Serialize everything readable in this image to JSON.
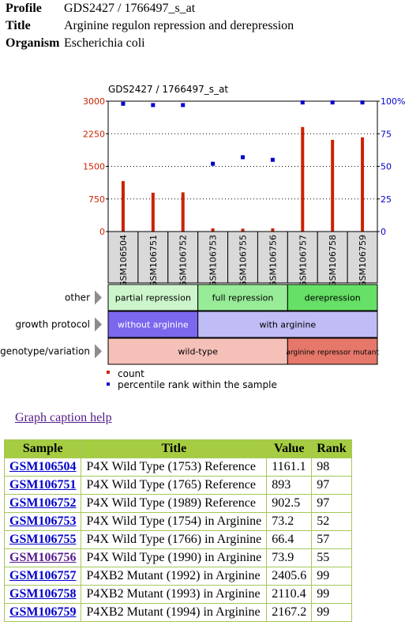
{
  "meta": {
    "profile_label": "Profile",
    "profile": "GDS2427 / 1766497_s_at",
    "title_label": "Title",
    "title": "Arginine regulon repression and derepression",
    "organism_label": "Organism",
    "organism": "Escherichia coli"
  },
  "chart_data": {
    "type": "bar",
    "title": "GDS2427 / 1766497_s_at",
    "categories": [
      "GSM106504",
      "GSM106751",
      "GSM106752",
      "GSM106753",
      "GSM106755",
      "GSM106756",
      "GSM106757",
      "GSM106758",
      "GSM106759"
    ],
    "series": [
      {
        "name": "count",
        "axis": "left",
        "color": "#cc2200",
        "values": [
          1161.1,
          893,
          902.5,
          73.2,
          66.4,
          73.9,
          2405.6,
          2110.4,
          2167.2
        ]
      },
      {
        "name": "percentile rank within the sample",
        "axis": "right",
        "color": "#0000cc",
        "values": [
          98,
          97,
          97,
          52,
          57,
          55,
          99,
          99,
          99
        ]
      }
    ],
    "left_axis": {
      "ticks": [
        "3000",
        "2250",
        "1500",
        "750",
        "0"
      ],
      "range": [
        0,
        3000
      ],
      "color": "#cc2200"
    },
    "right_axis": {
      "ticks": [
        "100%",
        "75",
        "50",
        "25",
        "0"
      ],
      "range": [
        0,
        100
      ],
      "color": "#0000cc"
    },
    "grid": true,
    "subsets": [
      {
        "label": "other",
        "groups": [
          {
            "text": "partial repression",
            "span": 3,
            "color": "#ccf5cc"
          },
          {
            "text": "full repression",
            "span": 3,
            "color": "#98ec98"
          },
          {
            "text": "derepression",
            "span": 3,
            "color": "#66e066"
          }
        ]
      },
      {
        "label": "growth protocol",
        "groups": [
          {
            "text": "without arginine",
            "span": 3,
            "color": "#7b68ee",
            "dark": true
          },
          {
            "text": "with arginine",
            "span": 6,
            "color": "#c0bcf5"
          }
        ]
      },
      {
        "label": "genotype/variation",
        "groups": [
          {
            "text": "wild-type",
            "span": 6,
            "color": "#f5c0b8"
          },
          {
            "text": "arginine repressor mutant",
            "span": 3,
            "color": "#e5786a",
            "small": true
          }
        ]
      }
    ],
    "legend": {
      "placement": "bottom-left",
      "items": [
        "count",
        "percentile rank within the sample"
      ]
    }
  },
  "help_link": "Graph caption help",
  "table": {
    "headers": [
      "Sample",
      "Title",
      "Value",
      "Rank"
    ],
    "rows": [
      {
        "sample": "GSM106504",
        "title": "P4X Wild Type (1753) Reference",
        "value": "1161.1",
        "rank": "98"
      },
      {
        "sample": "GSM106751",
        "title": "P4X Wild Type (1765) Reference",
        "value": "893",
        "rank": "97"
      },
      {
        "sample": "GSM106752",
        "title": "P4X Wild Type (1989) Reference",
        "value": "902.5",
        "rank": "97"
      },
      {
        "sample": "GSM106753",
        "title": "P4X Wild Type (1754) in Arginine",
        "value": "73.2",
        "rank": "52"
      },
      {
        "sample": "GSM106755",
        "title": "P4X Wild Type (1766) in Arginine",
        "value": "66.4",
        "rank": "57"
      },
      {
        "sample": "GSM106756",
        "title": "P4X Wild Type (1990) in Arginine",
        "value": "73.9",
        "rank": "55",
        "visited": true
      },
      {
        "sample": "GSM106757",
        "title": "P4XB2 Mutant (1992) in Arginine",
        "value": "2405.6",
        "rank": "99"
      },
      {
        "sample": "GSM106758",
        "title": "P4XB2 Mutant (1993) in Arginine",
        "value": "2110.4",
        "rank": "99"
      },
      {
        "sample": "GSM106759",
        "title": "P4XB2 Mutant (1994) in Arginine",
        "value": "2167.2",
        "rank": "99"
      }
    ]
  }
}
